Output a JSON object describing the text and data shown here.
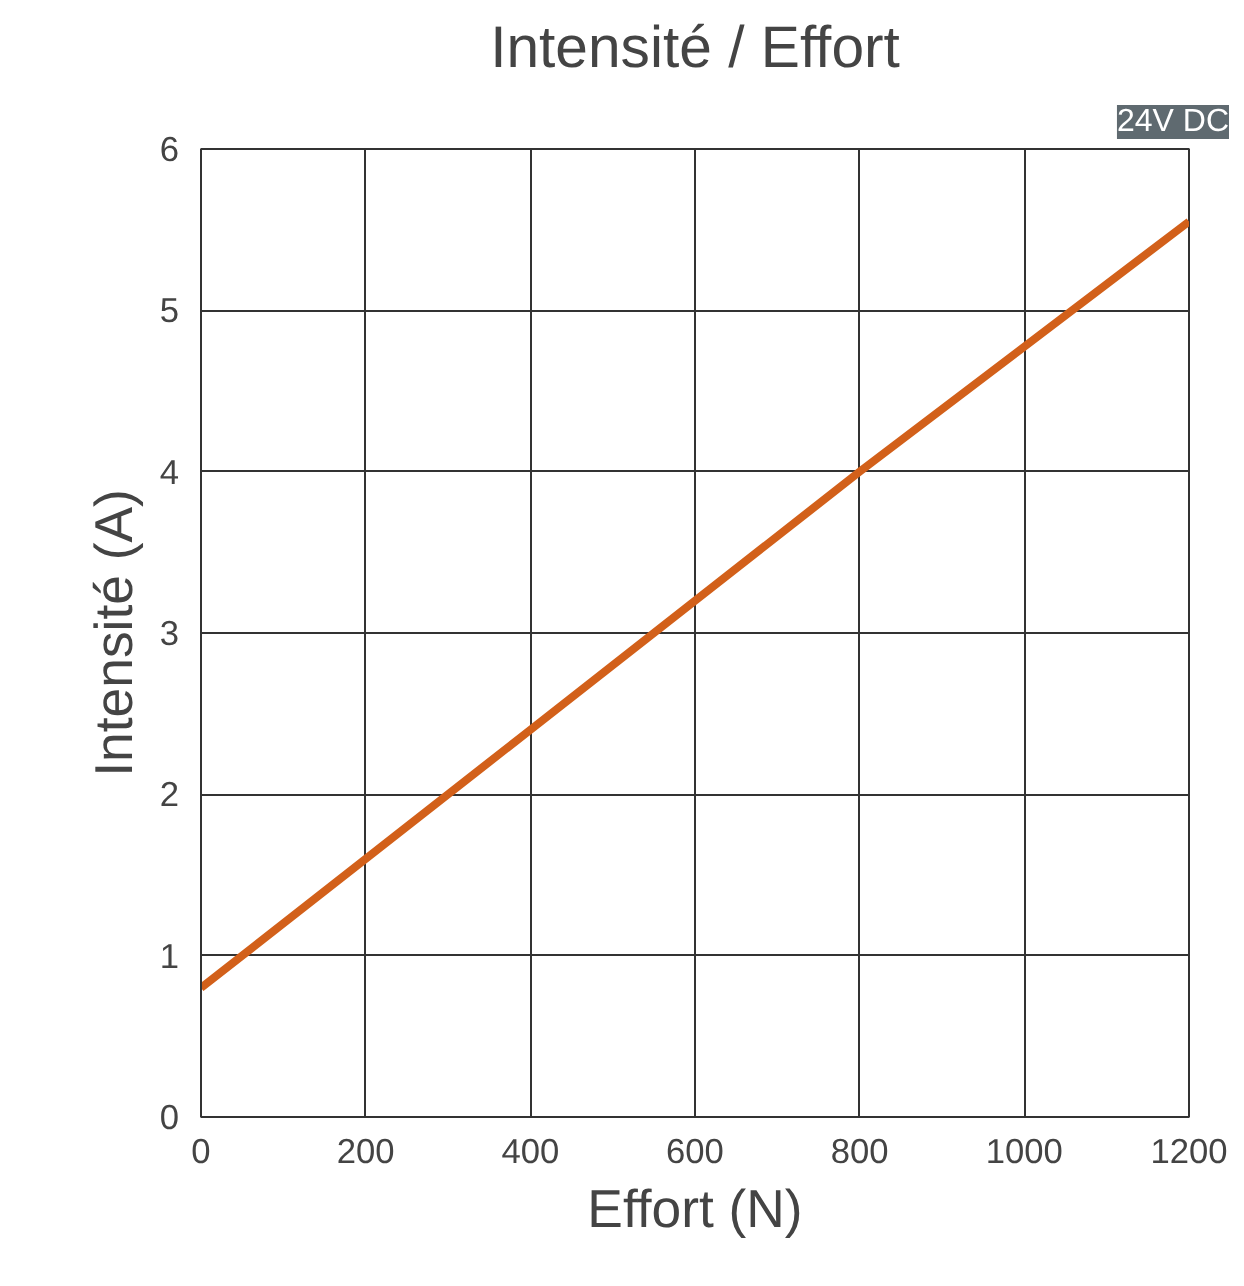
{
  "chart_data": {
    "type": "line",
    "title": "Intensité / Effort",
    "xlabel": "Effort (N)",
    "ylabel": "Intensité (A)",
    "annotations": [
      "24V DC"
    ],
    "x": [
      0,
      400,
      800,
      1200
    ],
    "series": [
      {
        "color": "#d2601a",
        "values": [
          0.8,
          2.4,
          4.0,
          5.55
        ]
      }
    ],
    "xlim": [
      0,
      1200
    ],
    "xticks": [
      0,
      200,
      400,
      600,
      800,
      1000,
      1200
    ],
    "ylim": [
      0,
      6
    ],
    "yticks": [
      0,
      1,
      2,
      3,
      4,
      5,
      6
    ],
    "grid": true,
    "marker": "none",
    "line_style": "solid"
  }
}
